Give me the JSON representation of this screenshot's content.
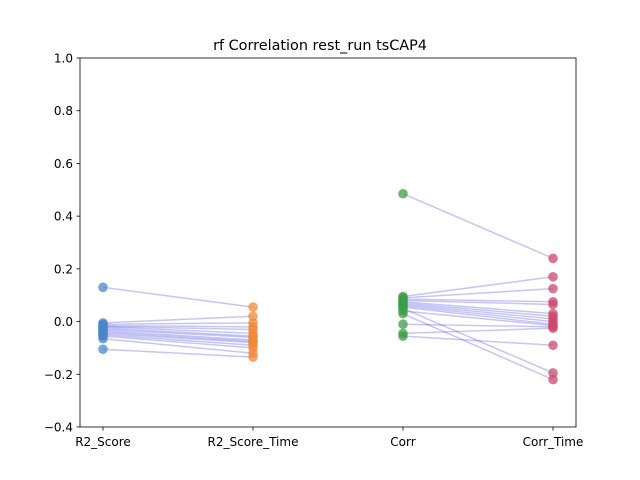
{
  "chart_data": {
    "type": "scatter",
    "title": "rf Correlation rest_run tsCAP4",
    "xlabel": "",
    "ylabel": "",
    "categories": [
      "R2_Score",
      "R2_Score_Time",
      "Corr",
      "Corr_Time"
    ],
    "ylim": [
      -0.4,
      1.0
    ],
    "yticks": [
      -0.4,
      -0.2,
      0.0,
      0.2,
      0.4,
      0.6,
      0.8,
      1.0
    ],
    "ytick_labels": [
      "−0.4",
      "−0.2",
      "0.0",
      "0.2",
      "0.4",
      "0.6",
      "0.8",
      "1.0"
    ],
    "grid": false,
    "colors": {
      "R2_Score": "#4a86c8",
      "R2_Score_Time": "#f08a3a",
      "Corr": "#3e9c4a",
      "Corr_Time": "#cc4a6e",
      "connector": "#3333dd"
    },
    "pairs": [
      {
        "group": "R2",
        "a": 0.13,
        "b": 0.055
      },
      {
        "group": "R2",
        "a": -0.005,
        "b": 0.02
      },
      {
        "group": "R2",
        "a": -0.01,
        "b": -0.005
      },
      {
        "group": "R2",
        "a": -0.015,
        "b": -0.02
      },
      {
        "group": "R2",
        "a": -0.018,
        "b": -0.03
      },
      {
        "group": "R2",
        "a": -0.02,
        "b": -0.045
      },
      {
        "group": "R2",
        "a": -0.025,
        "b": -0.055
      },
      {
        "group": "R2",
        "a": -0.03,
        "b": -0.06
      },
      {
        "group": "R2",
        "a": -0.035,
        "b": -0.07
      },
      {
        "group": "R2",
        "a": -0.04,
        "b": -0.075
      },
      {
        "group": "R2",
        "a": -0.045,
        "b": -0.08
      },
      {
        "group": "R2",
        "a": -0.05,
        "b": -0.09
      },
      {
        "group": "R2",
        "a": -0.055,
        "b": -0.1
      },
      {
        "group": "R2",
        "a": -0.065,
        "b": -0.12
      },
      {
        "group": "R2",
        "a": -0.105,
        "b": -0.135
      },
      {
        "group": "Corr",
        "a": 0.485,
        "b": 0.24
      },
      {
        "group": "Corr",
        "a": 0.095,
        "b": 0.17
      },
      {
        "group": "Corr",
        "a": 0.09,
        "b": 0.125
      },
      {
        "group": "Corr",
        "a": 0.085,
        "b": 0.075
      },
      {
        "group": "Corr",
        "a": 0.08,
        "b": 0.065
      },
      {
        "group": "Corr",
        "a": 0.075,
        "b": 0.03
      },
      {
        "group": "Corr",
        "a": 0.07,
        "b": 0.02
      },
      {
        "group": "Corr",
        "a": 0.065,
        "b": 0.01
      },
      {
        "group": "Corr",
        "a": 0.06,
        "b": 0.0
      },
      {
        "group": "Corr",
        "a": 0.055,
        "b": -0.01
      },
      {
        "group": "Corr",
        "a": 0.05,
        "b": -0.195
      },
      {
        "group": "Corr",
        "a": 0.04,
        "b": -0.015
      },
      {
        "group": "Corr",
        "a": 0.03,
        "b": -0.22
      },
      {
        "group": "Corr",
        "a": -0.01,
        "b": -0.02
      },
      {
        "group": "Corr",
        "a": -0.045,
        "b": -0.025
      },
      {
        "group": "Corr",
        "a": -0.055,
        "b": -0.09
      }
    ]
  }
}
